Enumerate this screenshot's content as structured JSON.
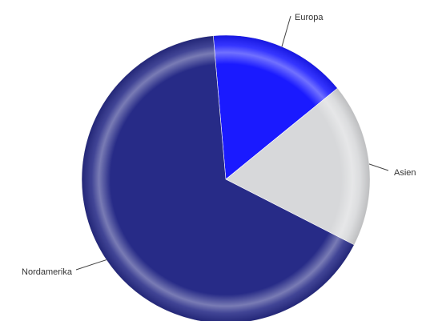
{
  "chart_data": {
    "type": "pie",
    "categories": [
      "Europa",
      "Asien",
      "Nordamerika"
    ],
    "values": [
      15.5,
      18.4,
      66.1
    ],
    "colors": [
      "#1a1aff",
      "#d7d8da",
      "#272b87"
    ],
    "legend": "none",
    "data_labels": "outside-with-leader-lines"
  }
}
